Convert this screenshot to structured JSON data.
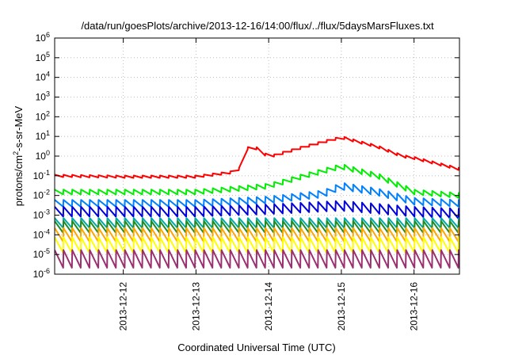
{
  "chart_data": {
    "type": "line",
    "title": "/data/run/goesPlots/archive/2013-12-16/14:00/flux/../flux/5daysMarsFluxes.txt",
    "xlabel": "Coordinated Universal Time (UTC)",
    "ylabel": {
      "pre": "protons/cm",
      "sup": "2",
      "post": "-s-sr-MeV"
    },
    "x_range": [
      "2013-12-11T01:20",
      "2013-12-16T15:00"
    ],
    "x_ticks": [
      "2013-12-12",
      "2013-12-13",
      "2013-12-14",
      "2013-12-15",
      "2013-12-16"
    ],
    "y_scale": "log",
    "y_range": [
      1e-06,
      1000000.0
    ],
    "y_ticks": [
      {
        "value": 1e-06,
        "base": "10",
        "exp": "-6"
      },
      {
        "value": 1e-05,
        "base": "10",
        "exp": "-5"
      },
      {
        "value": 0.0001,
        "base": "10",
        "exp": "-4"
      },
      {
        "value": 0.001,
        "base": "10",
        "exp": "-3"
      },
      {
        "value": 0.01,
        "base": "10",
        "exp": "-2"
      },
      {
        "value": 0.1,
        "base": "10",
        "exp": "-1"
      },
      {
        "value": 1,
        "base": "10",
        "exp": "0"
      },
      {
        "value": 10,
        "base": "10",
        "exp": "1"
      },
      {
        "value": 100,
        "base": "10",
        "exp": "2"
      },
      {
        "value": 1000,
        "base": "10",
        "exp": "3"
      },
      {
        "value": 10000,
        "base": "10",
        "exp": "4"
      },
      {
        "value": 100000,
        "base": "10",
        "exp": "5"
      },
      {
        "value": 1000000,
        "base": "10",
        "exp": "6"
      }
    ],
    "grid": true,
    "legend": "none",
    "series": [
      {
        "color": "#ff0000",
        "base": [
          [
            "2013-12-11T01:20",
            0.1
          ],
          [
            "2013-12-12T00:00",
            0.09
          ],
          [
            "2013-12-13T00:00",
            0.09
          ],
          [
            "2013-12-13T12:00",
            0.15
          ],
          [
            "2013-12-13T16:00",
            0.3
          ],
          [
            "2013-12-13T16:30",
            2.5
          ],
          [
            "2013-12-13T20:00",
            2.5
          ],
          [
            "2013-12-14T00:00",
            0.9
          ],
          [
            "2013-12-14T12:00",
            3
          ],
          [
            "2013-12-15T00:00",
            9
          ],
          [
            "2013-12-15T12:00",
            3
          ],
          [
            "2013-12-15T20:00",
            1
          ],
          [
            "2013-12-16T00:00",
            0.8
          ],
          [
            "2013-12-16T15:00",
            0.22
          ]
        ]
      },
      {
        "color": "#00ee00",
        "base": [
          [
            "2013-12-11T01:20",
            0.015
          ],
          [
            "2013-12-12T00:00",
            0.015
          ],
          [
            "2013-12-13T00:00",
            0.015
          ],
          [
            "2013-12-14T00:00",
            0.03
          ],
          [
            "2013-12-14T12:00",
            0.1
          ],
          [
            "2013-12-15T00:00",
            0.3
          ],
          [
            "2013-12-15T12:00",
            0.1
          ],
          [
            "2013-12-16T00:00",
            0.015
          ],
          [
            "2013-12-16T15:00",
            0.01
          ]
        ]
      },
      {
        "color": "#0080ff",
        "base": [
          [
            "2013-12-11T01:20",
            0.004
          ],
          [
            "2013-12-12T00:00",
            0.004
          ],
          [
            "2013-12-13T00:00",
            0.004
          ],
          [
            "2013-12-14T00:00",
            0.006
          ],
          [
            "2013-12-14T18:00",
            0.012
          ],
          [
            "2013-12-15T00:00",
            0.03
          ],
          [
            "2013-12-15T12:00",
            0.015
          ],
          [
            "2013-12-16T00:00",
            0.005
          ],
          [
            "2013-12-16T15:00",
            0.004
          ]
        ]
      },
      {
        "color": "#0000dd",
        "base": [
          [
            "2013-12-11T01:20",
            0.0015
          ],
          [
            "2013-12-13T00:00",
            0.0015
          ],
          [
            "2013-12-14T00:00",
            0.002
          ],
          [
            "2013-12-15T00:00",
            0.003
          ],
          [
            "2013-12-16T00:00",
            0.0015
          ],
          [
            "2013-12-16T15:00",
            0.0012
          ]
        ]
      },
      {
        "color": "#00aaaa",
        "base": [
          [
            "2013-12-11T01:20",
            0.0004
          ],
          [
            "2013-12-16T15:00",
            0.0004
          ]
        ]
      },
      {
        "color": "#228b22",
        "base": [
          [
            "2013-12-11T01:20",
            0.00025
          ],
          [
            "2013-12-16T15:00",
            0.00025
          ]
        ]
      },
      {
        "color": "#ffa500",
        "base": [
          [
            "2013-12-11T01:20",
            0.0001
          ],
          [
            "2013-12-16T15:00",
            0.0001
          ]
        ]
      },
      {
        "color": "#ffff00",
        "base": [
          [
            "2013-12-11T01:20",
            3e-05
          ],
          [
            "2013-12-16T15:00",
            3e-05
          ]
        ]
      },
      {
        "color": "#9b3070",
        "base": [
          [
            "2013-12-11T01:20",
            6e-06
          ],
          [
            "2013-12-16T15:00",
            6e-06
          ]
        ]
      }
    ]
  }
}
